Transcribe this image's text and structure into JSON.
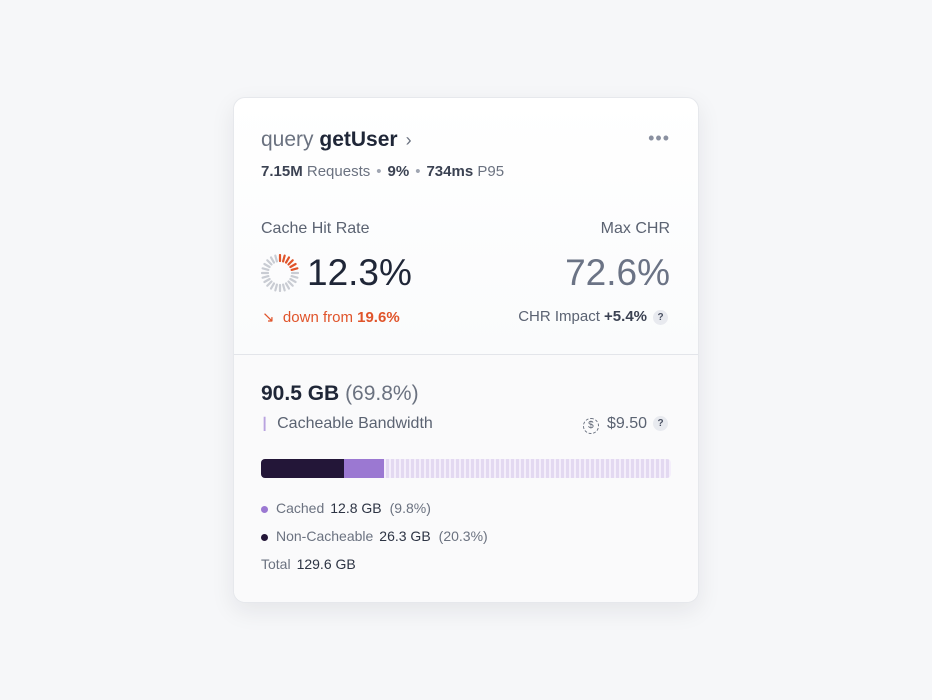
{
  "header": {
    "keyword": "query",
    "name": "getUser",
    "more_icon": "ellipsis-icon"
  },
  "stats": {
    "requests_value": "7.15M",
    "requests_label": "Requests",
    "share": "9%",
    "latency_value": "734ms",
    "latency_label": "P95"
  },
  "cache_hit_rate": {
    "label": "Cache Hit Rate",
    "value": "12.3%",
    "fraction": 0.123,
    "trend_prefix": "down from",
    "trend_value": "19.6%",
    "trend_color": "#e0542a"
  },
  "max_chr": {
    "label": "Max CHR",
    "value": "72.6%",
    "impact_label": "CHR Impact",
    "impact_value": "+5.4%",
    "help": "?"
  },
  "bandwidth": {
    "value": "90.5 GB",
    "percent": "(69.8%)",
    "label": "Cacheable Bandwidth",
    "cost": "$9.50",
    "help": "?",
    "bar": {
      "non_cacheable_pct": 20.3,
      "cached_pct": 9.8,
      "cacheable_pct": 69.8
    },
    "legend": [
      {
        "label": "Cached",
        "value": "12.8 GB",
        "pct": "(9.8%)",
        "color": "#9b78d2"
      },
      {
        "label": "Non-Cacheable",
        "value": "26.3 GB",
        "pct": "(20.3%)",
        "color": "#231638"
      }
    ],
    "total_label": "Total",
    "total_value": "129.6 GB"
  }
}
